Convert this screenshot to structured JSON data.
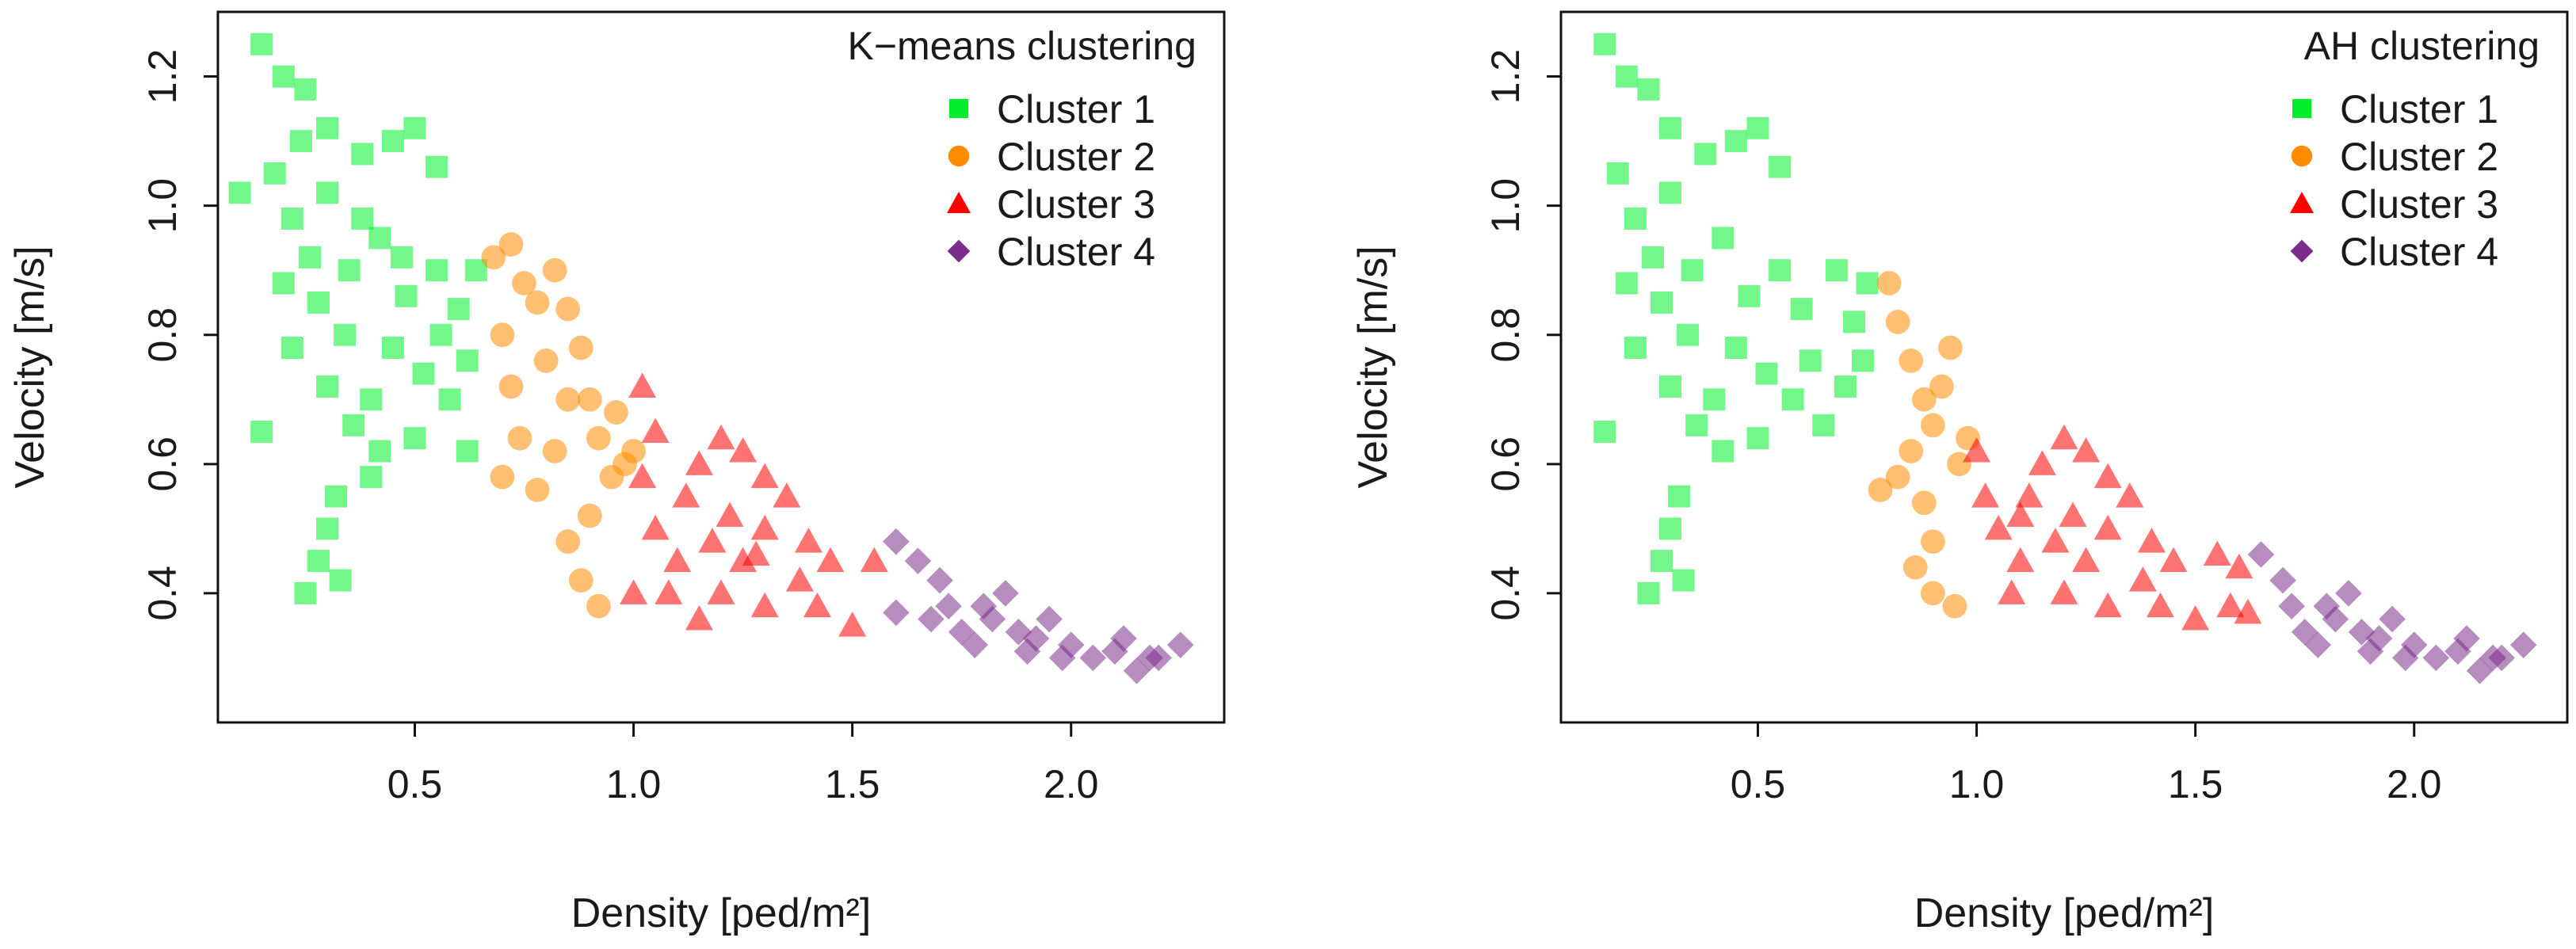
{
  "chart_data": [
    {
      "type": "scatter",
      "title": "K−means clustering",
      "xlabel": "Density [ped/m²]",
      "ylabel": "Velocity [m/s]",
      "xlim": [
        0.05,
        2.35
      ],
      "ylim": [
        0.2,
        1.3
      ],
      "xticks": [
        "0.5",
        "1.0",
        "1.5",
        "2.0"
      ],
      "yticks": [
        "0.4",
        "0.6",
        "0.8",
        "1.0",
        "1.2"
      ],
      "legend_position": "top-right",
      "series": [
        {
          "name": "Cluster 1",
          "color": "#00ee2a",
          "marker": "square",
          "points": [
            [
              0.15,
              1.25
            ],
            [
              0.2,
              1.2
            ],
            [
              0.25,
              1.18
            ],
            [
              0.3,
              1.12
            ],
            [
              0.18,
              1.05
            ],
            [
              0.22,
              0.98
            ],
            [
              0.3,
              1.02
            ],
            [
              0.38,
              1.08
            ],
            [
              0.45,
              1.1
            ],
            [
              0.5,
              1.12
            ],
            [
              0.55,
              1.06
            ],
            [
              0.42,
              0.95
            ],
            [
              0.35,
              0.9
            ],
            [
              0.28,
              0.85
            ],
            [
              0.22,
              0.78
            ],
            [
              0.3,
              0.72
            ],
            [
              0.36,
              0.66
            ],
            [
              0.42,
              0.62
            ],
            [
              0.5,
              0.64
            ],
            [
              0.58,
              0.7
            ],
            [
              0.62,
              0.76
            ],
            [
              0.6,
              0.84
            ],
            [
              0.55,
              0.9
            ],
            [
              0.48,
              0.86
            ],
            [
              0.45,
              0.78
            ],
            [
              0.52,
              0.74
            ],
            [
              0.4,
              0.7
            ],
            [
              0.34,
              0.8
            ],
            [
              0.26,
              0.92
            ],
            [
              0.2,
              0.88
            ],
            [
              0.32,
              0.55
            ],
            [
              0.3,
              0.5
            ],
            [
              0.28,
              0.45
            ],
            [
              0.33,
              0.42
            ],
            [
              0.25,
              0.4
            ],
            [
              0.15,
              0.65
            ],
            [
              0.62,
              0.62
            ],
            [
              0.64,
              0.9
            ],
            [
              0.1,
              1.02
            ],
            [
              0.4,
              0.58
            ],
            [
              0.56,
              0.8
            ],
            [
              0.47,
              0.92
            ],
            [
              0.38,
              0.98
            ],
            [
              0.24,
              1.1
            ]
          ]
        },
        {
          "name": "Cluster 2",
          "color": "#ff8c00",
          "marker": "circle",
          "points": [
            [
              0.68,
              0.92
            ],
            [
              0.72,
              0.94
            ],
            [
              0.75,
              0.88
            ],
            [
              0.7,
              0.8
            ],
            [
              0.72,
              0.72
            ],
            [
              0.74,
              0.64
            ],
            [
              0.7,
              0.58
            ],
            [
              0.78,
              0.56
            ],
            [
              0.82,
              0.62
            ],
            [
              0.85,
              0.7
            ],
            [
              0.8,
              0.76
            ],
            [
              0.85,
              0.84
            ],
            [
              0.88,
              0.78
            ],
            [
              0.9,
              0.7
            ],
            [
              0.92,
              0.64
            ],
            [
              0.95,
              0.58
            ],
            [
              0.9,
              0.52
            ],
            [
              0.85,
              0.48
            ],
            [
              0.88,
              0.42
            ],
            [
              0.92,
              0.38
            ],
            [
              0.98,
              0.6
            ],
            [
              0.96,
              0.68
            ],
            [
              1.0,
              0.62
            ],
            [
              0.78,
              0.85
            ],
            [
              0.82,
              0.9
            ]
          ]
        },
        {
          "name": "Cluster 3",
          "color": "#ff0000",
          "marker": "triangle",
          "points": [
            [
              1.02,
              0.72
            ],
            [
              1.05,
              0.65
            ],
            [
              1.02,
              0.58
            ],
            [
              1.05,
              0.5
            ],
            [
              1.1,
              0.45
            ],
            [
              1.08,
              0.4
            ],
            [
              1.12,
              0.55
            ],
            [
              1.15,
              0.6
            ],
            [
              1.2,
              0.64
            ],
            [
              1.25,
              0.62
            ],
            [
              1.3,
              0.58
            ],
            [
              1.22,
              0.52
            ],
            [
              1.18,
              0.48
            ],
            [
              1.25,
              0.45
            ],
            [
              1.3,
              0.5
            ],
            [
              1.35,
              0.55
            ],
            [
              1.4,
              0.48
            ],
            [
              1.38,
              0.42
            ],
            [
              1.45,
              0.45
            ],
            [
              1.42,
              0.38
            ],
            [
              1.5,
              0.35
            ],
            [
              1.3,
              0.38
            ],
            [
              1.2,
              0.4
            ],
            [
              1.15,
              0.36
            ],
            [
              1.0,
              0.4
            ],
            [
              1.55,
              0.45
            ],
            [
              1.28,
              0.46
            ]
          ]
        },
        {
          "name": "Cluster 4",
          "color": "#7b2d8b",
          "marker": "diamond",
          "points": [
            [
              1.6,
              0.48
            ],
            [
              1.65,
              0.45
            ],
            [
              1.7,
              0.42
            ],
            [
              1.72,
              0.38
            ],
            [
              1.6,
              0.37
            ],
            [
              1.68,
              0.36
            ],
            [
              1.75,
              0.34
            ],
            [
              1.8,
              0.38
            ],
            [
              1.85,
              0.4
            ],
            [
              1.82,
              0.36
            ],
            [
              1.78,
              0.32
            ],
            [
              1.88,
              0.34
            ],
            [
              1.92,
              0.33
            ],
            [
              1.95,
              0.36
            ],
            [
              2.0,
              0.32
            ],
            [
              2.05,
              0.3
            ],
            [
              2.1,
              0.31
            ],
            [
              2.15,
              0.28
            ],
            [
              2.2,
              0.3
            ],
            [
              2.25,
              0.32
            ],
            [
              2.18,
              0.3
            ],
            [
              2.12,
              0.33
            ],
            [
              1.98,
              0.3
            ],
            [
              1.9,
              0.31
            ]
          ]
        }
      ]
    },
    {
      "type": "scatter",
      "title": "AH clustering",
      "xlabel": "Density [ped/m²]",
      "ylabel": "Velocity [m/s]",
      "xlim": [
        0.05,
        2.35
      ],
      "ylim": [
        0.2,
        1.3
      ],
      "xticks": [
        "0.5",
        "1.0",
        "1.5",
        "2.0"
      ],
      "yticks": [
        "0.4",
        "0.6",
        "0.8",
        "1.0",
        "1.2"
      ],
      "legend_position": "top-right",
      "series": [
        {
          "name": "Cluster 1",
          "color": "#00ee2a",
          "marker": "square",
          "points": [
            [
              0.15,
              1.25
            ],
            [
              0.2,
              1.2
            ],
            [
              0.25,
              1.18
            ],
            [
              0.3,
              1.12
            ],
            [
              0.18,
              1.05
            ],
            [
              0.22,
              0.98
            ],
            [
              0.3,
              1.02
            ],
            [
              0.38,
              1.08
            ],
            [
              0.45,
              1.1
            ],
            [
              0.5,
              1.12
            ],
            [
              0.55,
              1.06
            ],
            [
              0.42,
              0.95
            ],
            [
              0.35,
              0.9
            ],
            [
              0.28,
              0.85
            ],
            [
              0.22,
              0.78
            ],
            [
              0.3,
              0.72
            ],
            [
              0.36,
              0.66
            ],
            [
              0.42,
              0.62
            ],
            [
              0.5,
              0.64
            ],
            [
              0.58,
              0.7
            ],
            [
              0.62,
              0.76
            ],
            [
              0.6,
              0.84
            ],
            [
              0.55,
              0.9
            ],
            [
              0.48,
              0.86
            ],
            [
              0.45,
              0.78
            ],
            [
              0.52,
              0.74
            ],
            [
              0.4,
              0.7
            ],
            [
              0.34,
              0.8
            ],
            [
              0.26,
              0.92
            ],
            [
              0.2,
              0.88
            ],
            [
              0.32,
              0.55
            ],
            [
              0.3,
              0.5
            ],
            [
              0.28,
              0.45
            ],
            [
              0.33,
              0.42
            ],
            [
              0.25,
              0.4
            ],
            [
              0.15,
              0.65
            ],
            [
              0.68,
              0.9
            ],
            [
              0.72,
              0.82
            ],
            [
              0.75,
              0.88
            ],
            [
              0.7,
              0.72
            ],
            [
              0.65,
              0.66
            ],
            [
              0.74,
              0.76
            ]
          ]
        },
        {
          "name": "Cluster 2",
          "color": "#ff8c00",
          "marker": "circle",
          "points": [
            [
              0.8,
              0.88
            ],
            [
              0.82,
              0.82
            ],
            [
              0.85,
              0.76
            ],
            [
              0.88,
              0.7
            ],
            [
              0.9,
              0.66
            ],
            [
              0.85,
              0.62
            ],
            [
              0.82,
              0.58
            ],
            [
              0.78,
              0.56
            ],
            [
              0.88,
              0.54
            ],
            [
              0.9,
              0.48
            ],
            [
              0.86,
              0.44
            ],
            [
              0.9,
              0.4
            ],
            [
              0.95,
              0.38
            ],
            [
              0.96,
              0.6
            ],
            [
              0.98,
              0.64
            ],
            [
              0.92,
              0.72
            ],
            [
              0.94,
              0.78
            ]
          ]
        },
        {
          "name": "Cluster 3",
          "color": "#ff0000",
          "marker": "triangle",
          "points": [
            [
              1.0,
              0.62
            ],
            [
              1.02,
              0.55
            ],
            [
              1.05,
              0.5
            ],
            [
              1.1,
              0.45
            ],
            [
              1.08,
              0.4
            ],
            [
              1.12,
              0.55
            ],
            [
              1.15,
              0.6
            ],
            [
              1.2,
              0.64
            ],
            [
              1.25,
              0.62
            ],
            [
              1.3,
              0.58
            ],
            [
              1.22,
              0.52
            ],
            [
              1.18,
              0.48
            ],
            [
              1.25,
              0.45
            ],
            [
              1.3,
              0.5
            ],
            [
              1.35,
              0.55
            ],
            [
              1.4,
              0.48
            ],
            [
              1.38,
              0.42
            ],
            [
              1.45,
              0.45
            ],
            [
              1.42,
              0.38
            ],
            [
              1.5,
              0.36
            ],
            [
              1.3,
              0.38
            ],
            [
              1.2,
              0.4
            ],
            [
              1.55,
              0.46
            ],
            [
              1.6,
              0.44
            ],
            [
              1.58,
              0.38
            ],
            [
              1.62,
              0.37
            ],
            [
              1.1,
              0.52
            ]
          ]
        },
        {
          "name": "Cluster 4",
          "color": "#7b2d8b",
          "marker": "diamond",
          "points": [
            [
              1.65,
              0.46
            ],
            [
              1.7,
              0.42
            ],
            [
              1.72,
              0.38
            ],
            [
              1.75,
              0.34
            ],
            [
              1.8,
              0.38
            ],
            [
              1.85,
              0.4
            ],
            [
              1.82,
              0.36
            ],
            [
              1.78,
              0.32
            ],
            [
              1.88,
              0.34
            ],
            [
              1.92,
              0.33
            ],
            [
              1.95,
              0.36
            ],
            [
              2.0,
              0.32
            ],
            [
              2.05,
              0.3
            ],
            [
              2.1,
              0.31
            ],
            [
              2.15,
              0.28
            ],
            [
              2.2,
              0.3
            ],
            [
              2.25,
              0.32
            ],
            [
              2.18,
              0.3
            ],
            [
              2.12,
              0.33
            ],
            [
              1.98,
              0.3
            ],
            [
              1.9,
              0.31
            ]
          ]
        }
      ]
    }
  ]
}
